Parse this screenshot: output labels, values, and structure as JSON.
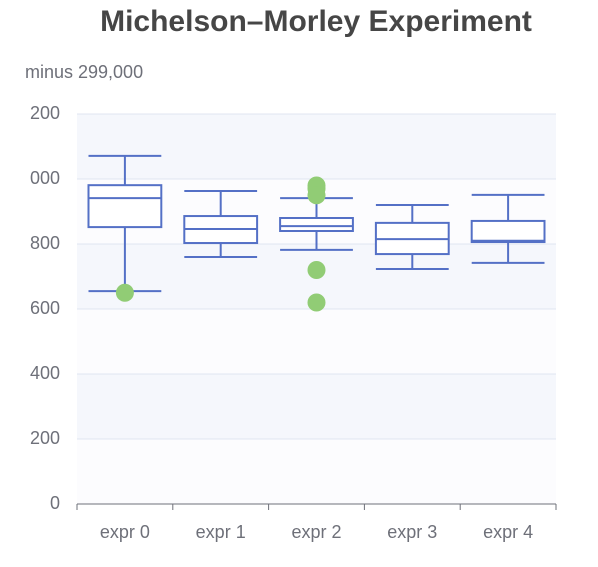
{
  "chart_data": {
    "type": "boxplot",
    "title": "Michelson–Morley Experiment",
    "subtitle": "minus 299,000",
    "categories": [
      "expr 0",
      "expr 1",
      "expr 2",
      "expr 3",
      "expr 4"
    ],
    "boxes": [
      [
        655,
        852,
        941,
        981,
        1071
      ],
      [
        760,
        803,
        846,
        886,
        963
      ],
      [
        782,
        840,
        855,
        880,
        941
      ],
      [
        723,
        769,
        815,
        865,
        920
      ],
      [
        742,
        806,
        810,
        871,
        951
      ]
    ],
    "outliers": [
      [
        0,
        650
      ],
      [
        2,
        980
      ],
      [
        2,
        970
      ],
      [
        2,
        950
      ],
      [
        2,
        720
      ],
      [
        2,
        620
      ]
    ],
    "color": "#5470c6",
    "outlier_color": "#91cc75",
    "ylim": [
      0,
      1200
    ],
    "yticks": [
      0,
      200,
      400,
      600,
      800,
      {
        "value": 1000,
        "label": "000"
      },
      {
        "value": 1200,
        "label": "200"
      }
    ],
    "grid": true
  }
}
